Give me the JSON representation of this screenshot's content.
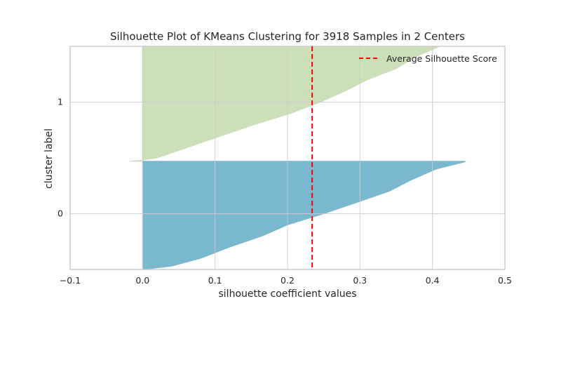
{
  "chart_data": {
    "type": "area",
    "title": "Silhouette Plot of KMeans Clustering for 3918 Samples in 2 Centers",
    "xlabel": "silhouette coefficient values",
    "ylabel": "cluster label",
    "xlim": [
      -0.1,
      0.5
    ],
    "ylim": [
      -0.5,
      1.5
    ],
    "xticks": [
      "−0.1",
      "0.0",
      "0.1",
      "0.2",
      "0.3",
      "0.4",
      "0.5"
    ],
    "yticks": [
      "0",
      "1"
    ],
    "grid": true,
    "legend": {
      "position": "top-right",
      "entries": [
        "Average Silhouette Score"
      ]
    },
    "average_silhouette_score": 0.234,
    "series": [
      {
        "cluster": "0",
        "color": "#7ab8d0",
        "band": [
          -0.5,
          0.47
        ],
        "profile": [
          {
            "y": -0.5,
            "x": 0.0
          },
          {
            "y": -0.47,
            "x": 0.04
          },
          {
            "y": -0.4,
            "x": 0.08
          },
          {
            "y": -0.3,
            "x": 0.12
          },
          {
            "y": -0.2,
            "x": 0.165
          },
          {
            "y": -0.1,
            "x": 0.2
          },
          {
            "y": 0.0,
            "x": 0.25
          },
          {
            "y": 0.1,
            "x": 0.295
          },
          {
            "y": 0.2,
            "x": 0.34
          },
          {
            "y": 0.3,
            "x": 0.37
          },
          {
            "y": 0.4,
            "x": 0.405
          },
          {
            "y": 0.465,
            "x": 0.445
          },
          {
            "y": 0.47,
            "x": 0.445
          }
        ]
      },
      {
        "cluster": "1",
        "color": "#cbdfb8",
        "band": [
          0.47,
          1.5
        ],
        "profile": [
          {
            "y": 0.47,
            "x": -0.018
          },
          {
            "y": 0.48,
            "x": 0.0
          },
          {
            "y": 0.5,
            "x": 0.02
          },
          {
            "y": 0.6,
            "x": 0.065
          },
          {
            "y": 0.7,
            "x": 0.11
          },
          {
            "y": 0.8,
            "x": 0.155
          },
          {
            "y": 0.9,
            "x": 0.205
          },
          {
            "y": 1.0,
            "x": 0.245
          },
          {
            "y": 1.1,
            "x": 0.28
          },
          {
            "y": 1.2,
            "x": 0.31
          },
          {
            "y": 1.3,
            "x": 0.35
          },
          {
            "y": 1.4,
            "x": 0.375
          },
          {
            "y": 1.5,
            "x": 0.41
          }
        ]
      }
    ]
  },
  "colors": {
    "average_line": "#ff0000",
    "grid": "#cccccc",
    "axes": "#cccccc",
    "text": "#262626"
  }
}
